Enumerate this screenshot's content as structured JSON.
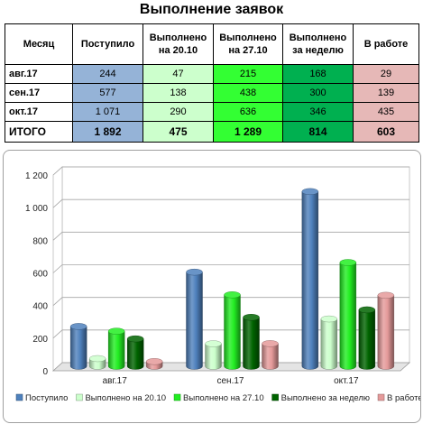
{
  "title": "Выполнение заявок",
  "table": {
    "headers": [
      "Месяц",
      "Поступило",
      "Выполнено на 20.10",
      "Выполнено на 27.10",
      "Выполнено за неделю",
      "В работе"
    ],
    "rows": [
      [
        "авг.17",
        "244",
        "47",
        "215",
        "168",
        "29"
      ],
      [
        "сен.17",
        "577",
        "138",
        "438",
        "300",
        "139"
      ],
      [
        "окт.17",
        "1 071",
        "290",
        "636",
        "346",
        "435"
      ]
    ],
    "total": [
      "ИТОГО",
      "1 892",
      "475",
      "1 289",
      "814",
      "603"
    ]
  },
  "chart_data": {
    "type": "bar",
    "style": "3d-cylinder",
    "categories": [
      "авг.17",
      "сен.17",
      "окт.17"
    ],
    "series": [
      {
        "name": "Поступило",
        "values": [
          244,
          577,
          1071
        ],
        "color": "#4f81bd"
      },
      {
        "name": "Выполнено на 20.10",
        "values": [
          47,
          138,
          290
        ],
        "color": "#ccffcc"
      },
      {
        "name": "Выполнено на 27.10",
        "values": [
          215,
          438,
          636
        ],
        "color": "#22ee22"
      },
      {
        "name": "Выполнено за неделю",
        "values": [
          168,
          300,
          346
        ],
        "color": "#006400"
      },
      {
        "name": "В работе",
        "values": [
          29,
          139,
          435
        ],
        "color": "#e59a9a"
      }
    ],
    "yticks": [
      "0",
      "200",
      "400",
      "600",
      "800",
      "1 000",
      "1 200"
    ],
    "ylim": [
      0,
      1200
    ],
    "grid": true,
    "legend_position": "bottom"
  }
}
